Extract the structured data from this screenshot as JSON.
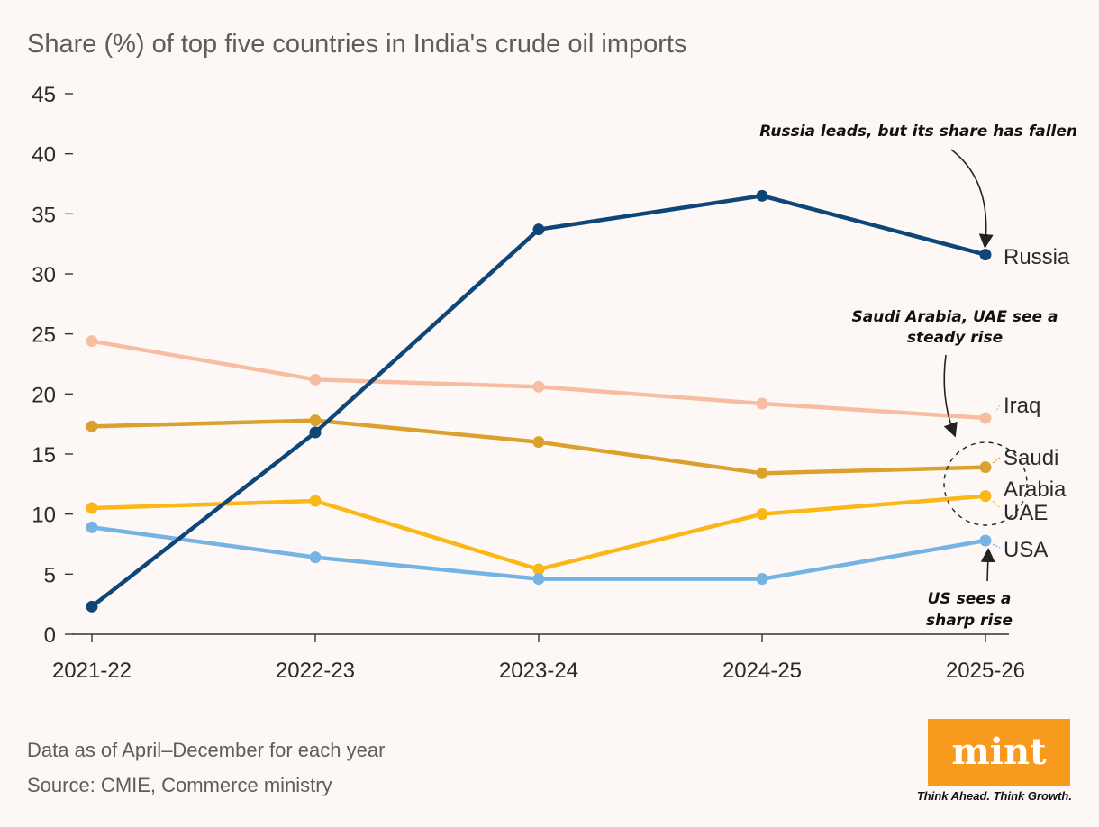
{
  "chart_data": {
    "type": "line",
    "title": "Share (%) of top five countries in India's crude oil imports",
    "categories": [
      "2021-22",
      "2022-23",
      "2023-24",
      "2024-25",
      "2025-26"
    ],
    "ylim": [
      0,
      45
    ],
    "yticks": [
      0,
      5,
      10,
      15,
      20,
      25,
      30,
      35,
      40,
      45
    ],
    "grid": false,
    "legend": "direct labels at line ends",
    "series": [
      {
        "name": "Iraq",
        "color": "#f7bda2",
        "values": [
          24.4,
          21.2,
          20.6,
          19.2,
          18.0
        ]
      },
      {
        "name": "Saudi Arabia",
        "color": "#dba12e",
        "values": [
          17.3,
          17.8,
          16.0,
          13.4,
          13.9
        ]
      },
      {
        "name": "UAE",
        "color": "#fbb718",
        "values": [
          10.5,
          11.1,
          5.4,
          10.0,
          11.5
        ]
      },
      {
        "name": "USA",
        "color": "#74b3e2",
        "values": [
          8.9,
          6.4,
          4.6,
          4.6,
          7.8
        ]
      },
      {
        "name": "Russia",
        "color": "#0d4677",
        "values": [
          2.3,
          16.8,
          33.7,
          36.5,
          31.6
        ]
      }
    ],
    "series_labels": {
      "russia": "Russia",
      "iraq": "Iraq",
      "saudi_line1": "Saudi",
      "saudi_line2": "Arabia",
      "uae": "UAE",
      "usa": "USA"
    },
    "annotations": {
      "russia": "Russia leads, but its share has fallen",
      "saudi_uae_line1": "Saudi Arabia, UAE see a",
      "saudi_uae_line2": "steady rise",
      "us_line1": "US sees a",
      "us_line2": "sharp rise"
    }
  },
  "footer": {
    "note": "Data as of April–December for each year",
    "source": "Source: CMIE, Commerce ministry"
  },
  "logo": {
    "text": "mint",
    "tagline": "Think Ahead. Think Growth.",
    "color": "#f79a1e"
  }
}
